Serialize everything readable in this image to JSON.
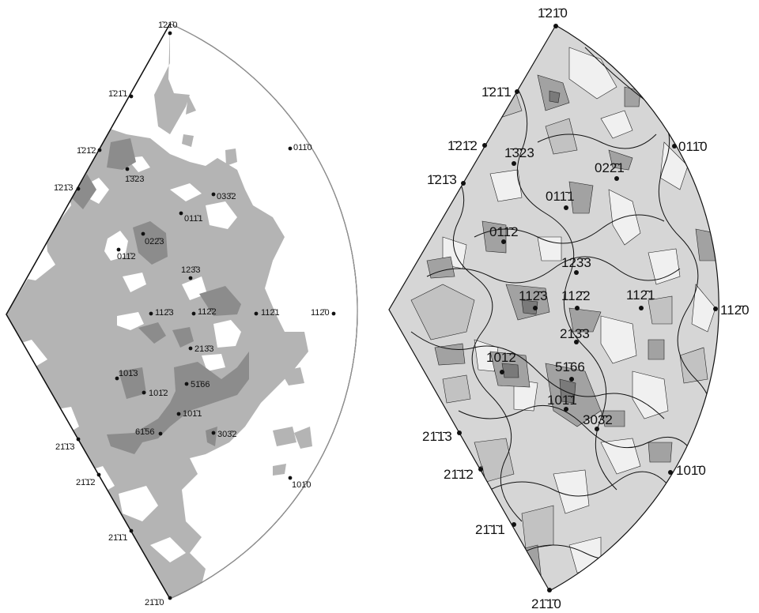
{
  "left_panel": {
    "points": [
      {
        "label": "1̄21̄0",
        "bar": [
          0,
          2
        ]
      },
      {
        "label": "1̄21̄1",
        "bar": [
          0,
          2
        ]
      },
      {
        "label": "1̄21̄2",
        "bar": [
          0,
          2
        ]
      },
      {
        "label": "1̄3̄23",
        "bar": [
          1
        ]
      },
      {
        "label": "1̄21̄3",
        "bar": [
          0,
          2
        ]
      },
      {
        "label": "011̄0",
        "bar": [
          2
        ]
      },
      {
        "label": "033̄2",
        "bar": [
          2
        ]
      },
      {
        "label": "011̄1",
        "bar": [
          2
        ]
      },
      {
        "label": "022̄3",
        "bar": [
          2
        ]
      },
      {
        "label": "011̄2",
        "bar": [
          2
        ]
      },
      {
        "label": "123̄3",
        "bar": [
          2
        ]
      },
      {
        "label": "112̄3",
        "bar": [
          2
        ]
      },
      {
        "label": "112̄2",
        "bar": [
          2
        ]
      },
      {
        "label": "112̄1",
        "bar": [
          2
        ]
      },
      {
        "label": "112̄0",
        "bar": [
          2
        ]
      },
      {
        "label": "213̄3",
        "bar": [
          2
        ]
      },
      {
        "label": "101̄3",
        "bar": [
          2
        ]
      },
      {
        "label": "101̄2",
        "bar": [
          2
        ]
      },
      {
        "label": "51̄66",
        "bar": [
          1
        ]
      },
      {
        "label": "101̄1",
        "bar": [
          2
        ]
      },
      {
        "label": "61̄56",
        "bar": [
          1
        ]
      },
      {
        "label": "303̄2",
        "bar": [
          2
        ]
      },
      {
        "label": "21̄1̄3",
        "bar": [
          1,
          2
        ]
      },
      {
        "label": "21̄1̄2",
        "bar": [
          1,
          2
        ]
      },
      {
        "label": "101̄0",
        "bar": [
          2
        ]
      },
      {
        "label": "21̄1̄1",
        "bar": [
          1,
          2
        ]
      },
      {
        "label": "21̄1̄0",
        "bar": [
          1,
          2
        ]
      }
    ]
  },
  "right_panel": {
    "points": [
      {
        "label": "1̄21̄0",
        "bar": [
          0,
          2
        ]
      },
      {
        "label": "1̄21̄1",
        "bar": [
          0,
          2
        ]
      },
      {
        "label": "1̄21̄2",
        "bar": [
          0,
          2
        ]
      },
      {
        "label": "1̄3̄23",
        "bar": [
          1
        ]
      },
      {
        "label": "1̄21̄3",
        "bar": [
          0,
          2
        ]
      },
      {
        "label": "011̄0",
        "bar": [
          2
        ]
      },
      {
        "label": "022̄1",
        "bar": [
          2
        ]
      },
      {
        "label": "011̄1",
        "bar": [
          2
        ]
      },
      {
        "label": "011̄2",
        "bar": [
          2
        ]
      },
      {
        "label": "123̄3",
        "bar": [
          2
        ]
      },
      {
        "label": "112̄3",
        "bar": [
          2
        ]
      },
      {
        "label": "112̄2",
        "bar": [
          2
        ]
      },
      {
        "label": "112̄1",
        "bar": [
          2
        ]
      },
      {
        "label": "112̄0",
        "bar": [
          2
        ]
      },
      {
        "label": "213̄3",
        "bar": [
          2
        ]
      },
      {
        "label": "101̄2",
        "bar": [
          2
        ]
      },
      {
        "label": "51̄66",
        "bar": [
          1
        ]
      },
      {
        "label": "101̄1",
        "bar": [
          2
        ]
      },
      {
        "label": "303̄2",
        "bar": [
          2
        ]
      },
      {
        "label": "21̄1̄3",
        "bar": [
          1,
          2
        ]
      },
      {
        "label": "21̄1̄2",
        "bar": [
          1,
          2
        ]
      },
      {
        "label": "101̄0",
        "bar": [
          2
        ]
      },
      {
        "label": "21̄1̄1",
        "bar": [
          1,
          2
        ]
      },
      {
        "label": "21̄1̄0",
        "bar": [
          1,
          2
        ]
      }
    ]
  }
}
